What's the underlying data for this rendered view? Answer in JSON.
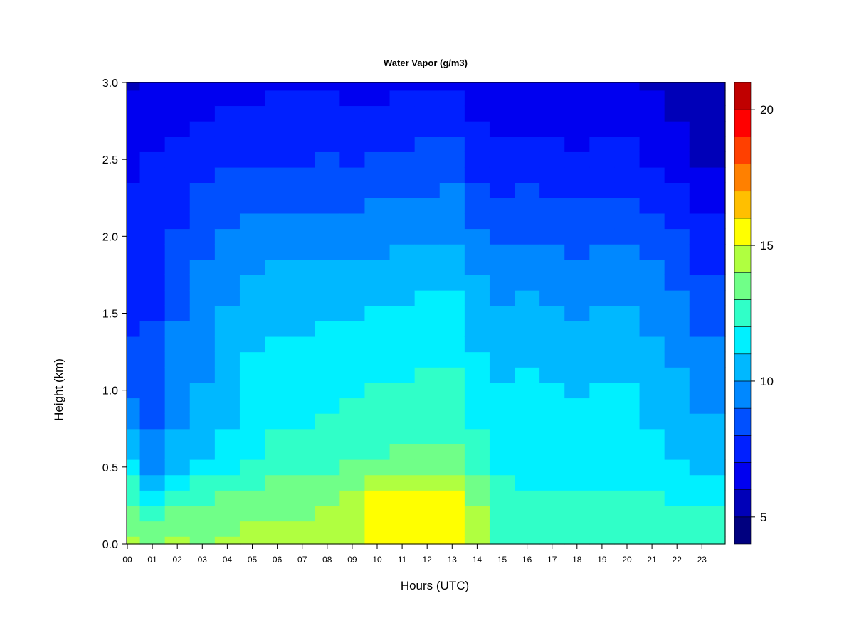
{
  "chart_data": {
    "type": "heatmap",
    "title": "Water Vapor (g/m3)",
    "xlabel": "Hours (UTC)",
    "ylabel": "Height (km)",
    "xlim": [
      0,
      24
    ],
    "ylim": [
      0.0,
      3.0
    ],
    "x_ticks": [
      "00",
      "01",
      "02",
      "03",
      "04",
      "05",
      "06",
      "07",
      "08",
      "09",
      "10",
      "11",
      "12",
      "13",
      "14",
      "15",
      "16",
      "17",
      "18",
      "19",
      "20",
      "21",
      "22",
      "23"
    ],
    "y_ticks": [
      "0.0",
      "0.5",
      "1.0",
      "1.5",
      "2.0",
      "2.5",
      "3.0"
    ],
    "colorbar": {
      "range": [
        4,
        21
      ],
      "ticks": [
        "5",
        "10",
        "15",
        "20"
      ],
      "levels": [
        4,
        5,
        6,
        7,
        8,
        9,
        10,
        11,
        12,
        13,
        14,
        15,
        16,
        17,
        18,
        19,
        20,
        21
      ],
      "colors": [
        "#00007F",
        "#0000B8",
        "#0000F0",
        "#0020FF",
        "#0050FF",
        "#0088FF",
        "#00B8FF",
        "#00F0FF",
        "#30FFC8",
        "#70FF88",
        "#B0FF40",
        "#FFFF00",
        "#FFBF00",
        "#FF8000",
        "#FF4000",
        "#FF0000",
        "#C00000",
        "#800000"
      ]
    },
    "height_km": [
      0.0,
      0.1,
      0.2,
      0.3,
      0.4,
      0.5,
      0.6,
      0.7,
      0.8,
      0.9,
      1.0,
      1.1,
      1.2,
      1.3,
      1.4,
      1.5,
      1.6,
      1.7,
      1.8,
      1.9,
      2.0,
      2.1,
      2.2,
      2.3,
      2.4,
      2.5,
      2.6,
      2.7,
      2.8,
      2.9,
      3.0
    ],
    "hours_utc": [
      0,
      1,
      2,
      3,
      4,
      5,
      6,
      7,
      8,
      9,
      10,
      11,
      12,
      13,
      14,
      15,
      16,
      17,
      18,
      19,
      20,
      21,
      22,
      23
    ],
    "values": [
      [
        14.5,
        13.8,
        13.2,
        12.8,
        12.2,
        11.5,
        10.8,
        10.2,
        9.6,
        9.1,
        8.7,
        8.4,
        8.2,
        8.0,
        7.9,
        7.8,
        7.7,
        7.6,
        7.5,
        7.4,
        7.3,
        7.2,
        7.1,
        7.0,
        6.9,
        6.8,
        6.6,
        6.4,
        6.2,
        6.0,
        5.8
      ],
      [
        13.5,
        13.0,
        12.5,
        11.8,
        10.5,
        9.8,
        9.4,
        9.0,
        8.8,
        8.6,
        8.4,
        8.3,
        8.2,
        8.1,
        8.0,
        7.9,
        7.9,
        7.8,
        7.7,
        7.6,
        7.5,
        7.4,
        7.3,
        7.2,
        7.1,
        7.0,
        6.9,
        6.8,
        6.6,
        6.4,
        6.2
      ],
      [
        14.0,
        13.4,
        13.0,
        12.5,
        11.5,
        10.8,
        10.3,
        10.0,
        9.8,
        9.6,
        9.5,
        9.3,
        9.2,
        9.1,
        9.0,
        8.9,
        8.8,
        8.6,
        8.4,
        8.2,
        8.0,
        7.9,
        7.8,
        7.6,
        7.4,
        7.2,
        7.0,
        6.8,
        6.6,
        6.4,
        6.2
      ],
      [
        13.8,
        13.5,
        13.2,
        12.8,
        12.0,
        11.3,
        10.8,
        10.5,
        10.3,
        10.1,
        10.0,
        9.9,
        9.8,
        9.7,
        9.6,
        9.5,
        9.4,
        9.3,
        9.1,
        8.9,
        8.7,
        8.5,
        8.3,
        8.0,
        7.8,
        7.5,
        7.3,
        7.1,
        6.9,
        6.7,
        6.5
      ],
      [
        14.0,
        13.8,
        13.5,
        13.0,
        12.4,
        11.8,
        11.3,
        11.0,
        10.8,
        10.6,
        10.5,
        10.4,
        10.3,
        10.2,
        10.1,
        10.0,
        9.9,
        9.7,
        9.5,
        9.3,
        9.0,
        8.8,
        8.6,
        8.3,
        8.0,
        7.8,
        7.5,
        7.3,
        7.1,
        6.9,
        6.7
      ],
      [
        14.2,
        14.0,
        13.7,
        13.3,
        12.8,
        12.3,
        11.9,
        11.6,
        11.4,
        11.3,
        11.2,
        11.1,
        11.0,
        10.9,
        10.7,
        10.5,
        10.3,
        10.1,
        9.9,
        9.6,
        9.3,
        9.0,
        8.7,
        8.4,
        8.1,
        7.8,
        7.6,
        7.3,
        7.1,
        6.9,
        6.7
      ],
      [
        14.3,
        14.1,
        13.8,
        13.5,
        13.0,
        12.6,
        12.3,
        12.0,
        11.8,
        11.6,
        11.5,
        11.4,
        11.3,
        11.1,
        10.9,
        10.7,
        10.5,
        10.3,
        10.0,
        9.7,
        9.4,
        9.1,
        8.8,
        8.5,
        8.2,
        7.9,
        7.6,
        7.4,
        7.2,
        7.0,
        6.8
      ],
      [
        14.4,
        14.2,
        13.9,
        13.6,
        13.1,
        12.7,
        12.4,
        12.1,
        11.9,
        11.7,
        11.6,
        11.5,
        11.3,
        11.1,
        10.9,
        10.7,
        10.5,
        10.3,
        10.0,
        9.7,
        9.4,
        9.1,
        8.8,
        8.5,
        8.2,
        7.9,
        7.7,
        7.4,
        7.2,
        7.0,
        6.8
      ],
      [
        14.6,
        14.4,
        14.1,
        13.8,
        13.3,
        12.9,
        12.6,
        12.3,
        12.1,
        11.9,
        11.7,
        11.6,
        11.4,
        11.2,
        11.0,
        10.8,
        10.6,
        10.4,
        10.1,
        9.8,
        9.5,
        9.2,
        8.9,
        8.6,
        8.3,
        8.0,
        7.7,
        7.4,
        7.2,
        7.0,
        6.8
      ],
      [
        14.8,
        14.6,
        14.3,
        14.0,
        13.5,
        13.0,
        12.7,
        12.4,
        12.2,
        12.0,
        11.8,
        11.6,
        11.4,
        11.2,
        11.0,
        10.8,
        10.6,
        10.3,
        10.0,
        9.7,
        9.4,
        9.1,
        8.8,
        8.5,
        8.2,
        7.9,
        7.6,
        7.3,
        7.1,
        6.9,
        6.7
      ],
      [
        15.5,
        15.3,
        15.2,
        15.0,
        14.2,
        13.4,
        12.9,
        12.6,
        12.4,
        12.2,
        12.0,
        11.8,
        11.6,
        11.4,
        11.2,
        11.0,
        10.8,
        10.5,
        10.2,
        9.9,
        9.6,
        9.3,
        9.0,
        8.7,
        8.4,
        8.1,
        7.8,
        7.5,
        7.2,
        6.9,
        6.6
      ],
      [
        15.6,
        15.5,
        15.6,
        15.4,
        14.6,
        13.6,
        13.0,
        12.7,
        12.5,
        12.3,
        12.1,
        11.9,
        11.7,
        11.5,
        11.3,
        11.1,
        10.9,
        10.6,
        10.3,
        10.0,
        9.7,
        9.4,
        9.1,
        8.8,
        8.5,
        8.2,
        7.9,
        7.6,
        7.3,
        7.0,
        6.7
      ],
      [
        15.7,
        15.6,
        15.8,
        15.5,
        14.7,
        13.7,
        13.1,
        12.8,
        12.6,
        12.4,
        12.2,
        12.0,
        11.8,
        11.6,
        11.4,
        11.2,
        11.0,
        10.7,
        10.4,
        10.1,
        9.8,
        9.5,
        9.2,
        8.9,
        8.6,
        8.3,
        8.0,
        7.6,
        7.3,
        7.0,
        6.7
      ],
      [
        15.8,
        15.7,
        15.9,
        15.6,
        14.8,
        13.8,
        13.2,
        12.9,
        12.7,
        12.5,
        12.3,
        12.1,
        11.9,
        11.7,
        11.5,
        11.3,
        11.1,
        10.8,
        10.5,
        10.2,
        9.9,
        9.6,
        9.3,
        9.0,
        8.7,
        8.4,
        8.1,
        7.7,
        7.4,
        7.1,
        6.8
      ],
      [
        14.6,
        14.4,
        14.2,
        13.9,
        13.2,
        12.6,
        12.2,
        12.0,
        11.8,
        11.6,
        11.5,
        11.3,
        11.1,
        10.9,
        10.7,
        10.5,
        10.3,
        10.0,
        9.7,
        9.4,
        9.1,
        8.8,
        8.5,
        8.2,
        7.9,
        7.6,
        7.3,
        7.0,
        6.8,
        6.6,
        6.4
      ],
      [
        12.8,
        12.8,
        12.7,
        12.5,
        12.0,
        11.6,
        11.4,
        11.3,
        11.2,
        11.1,
        11.0,
        10.9,
        10.7,
        10.5,
        10.3,
        10.1,
        9.9,
        9.7,
        9.4,
        9.1,
        8.8,
        8.5,
        8.2,
        7.9,
        7.6,
        7.3,
        7.0,
        6.8,
        6.6,
        6.4,
        6.2
      ],
      [
        12.6,
        12.6,
        12.5,
        12.3,
        11.9,
        11.6,
        11.5,
        11.5,
        11.4,
        11.3,
        11.2,
        11.0,
        10.8,
        10.6,
        10.4,
        10.2,
        10.0,
        9.8,
        9.5,
        9.2,
        8.9,
        8.6,
        8.3,
        8.0,
        7.7,
        7.4,
        7.1,
        6.9,
        6.7,
        6.5,
        6.3
      ],
      [
        12.5,
        12.5,
        12.4,
        12.2,
        11.8,
        11.5,
        11.4,
        11.4,
        11.3,
        11.2,
        11.1,
        10.9,
        10.7,
        10.5,
        10.3,
        10.1,
        9.9,
        9.7,
        9.4,
        9.1,
        8.8,
        8.5,
        8.2,
        7.9,
        7.6,
        7.3,
        7.0,
        6.8,
        6.6,
        6.4,
        6.2
      ],
      [
        12.4,
        12.4,
        12.3,
        12.1,
        11.7,
        11.4,
        11.3,
        11.2,
        11.1,
        11.0,
        10.9,
        10.7,
        10.5,
        10.3,
        10.1,
        9.9,
        9.7,
        9.5,
        9.2,
        8.9,
        8.6,
        8.3,
        8.0,
        7.7,
        7.4,
        7.1,
        6.8,
        6.6,
        6.4,
        6.2,
        6.0
      ],
      [
        12.5,
        12.5,
        12.4,
        12.2,
        11.8,
        11.6,
        11.5,
        11.4,
        11.3,
        11.2,
        11.1,
        10.9,
        10.7,
        10.5,
        10.3,
        10.1,
        9.9,
        9.7,
        9.4,
        9.1,
        8.8,
        8.5,
        8.2,
        7.9,
        7.6,
        7.3,
        7.0,
        6.8,
        6.6,
        6.4,
        6.2
      ],
      [
        12.6,
        12.6,
        12.5,
        12.3,
        11.9,
        11.6,
        11.5,
        11.4,
        11.3,
        11.2,
        11.1,
        10.9,
        10.7,
        10.5,
        10.3,
        10.1,
        9.9,
        9.7,
        9.4,
        9.1,
        8.8,
        8.5,
        8.2,
        7.9,
        7.6,
        7.3,
        7.0,
        6.8,
        6.6,
        6.4,
        6.2
      ],
      [
        12.4,
        12.4,
        12.3,
        12.0,
        11.6,
        11.3,
        11.1,
        11.0,
        10.9,
        10.8,
        10.7,
        10.5,
        10.3,
        10.1,
        9.9,
        9.7,
        9.5,
        9.3,
        9.0,
        8.7,
        8.4,
        8.1,
        7.8,
        7.5,
        7.2,
        6.9,
        6.6,
        6.4,
        6.2,
        6.0,
        5.8
      ],
      [
        12.3,
        12.3,
        12.2,
        11.9,
        11.4,
        11.0,
        10.8,
        10.6,
        10.5,
        10.4,
        10.3,
        10.1,
        9.9,
        9.7,
        9.5,
        9.3,
        9.1,
        8.9,
        8.6,
        8.3,
        8.0,
        7.7,
        7.4,
        7.1,
        6.8,
        6.5,
        6.2,
        6.0,
        5.8,
        5.6,
        5.5
      ],
      [
        12.2,
        12.2,
        12.1,
        11.8,
        11.2,
        10.7,
        10.4,
        10.2,
        10.0,
        9.8,
        9.6,
        9.4,
        9.2,
        9.0,
        8.8,
        8.6,
        8.4,
        8.2,
        7.9,
        7.6,
        7.3,
        7.0,
        6.7,
        6.4,
        6.1,
        5.9,
        5.7,
        5.6,
        5.5,
        5.4,
        5.3
      ]
    ]
  }
}
